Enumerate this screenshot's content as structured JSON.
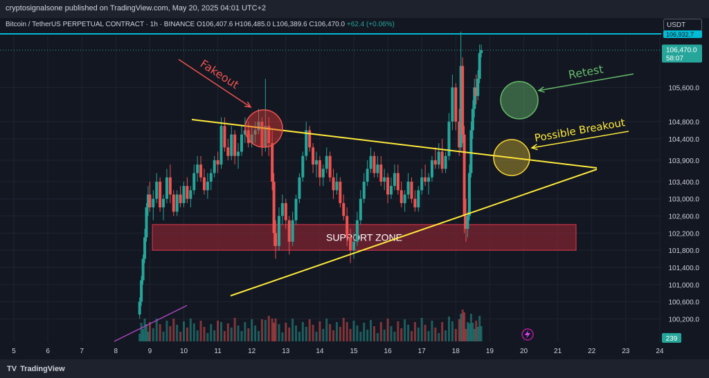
{
  "header": {
    "publish_info": "cryptosignalsone published on TradingView.com, May 20, 2025 04:01 UTC+2",
    "symbol": "Bitcoin / TetherUS PERPETUAL CONTRACT · 1h · BINANCE",
    "ohlc": "O106,407.6 H106,485.0 L106,389.6 C106,470.0",
    "change": "+62.4 (+0.06%)",
    "currency": "USDT"
  },
  "footer": {
    "brand": "TradingView",
    "logo_glyph": "TV"
  },
  "colors": {
    "background": "#131722",
    "up": "#26a69a",
    "down": "#ef5350",
    "trendline": "#ffeb3b",
    "support_zone": "#7d2431",
    "cyan_line": "#00bcd4"
  },
  "annotations": {
    "fakeout": "Fakeout",
    "retest": "Retest",
    "possible_breakout": "Possible Breakout",
    "support_zone": "SUPPORT ZONE"
  },
  "chart_data": {
    "type": "candlestick",
    "yticks": [
      "105,600.0",
      "104,800.0",
      "104,400.0",
      "103,900.0",
      "103,400.0",
      "103,000.0",
      "102,600.0",
      "102,200.0",
      "101,800.0",
      "101,400.0",
      "101,000.0",
      "100,600.0",
      "100,200.0"
    ],
    "xticks": [
      "5",
      "6",
      "7",
      "8",
      "9",
      "10",
      "11",
      "12",
      "13",
      "14",
      "15",
      "16",
      "17",
      "18",
      "19",
      "20",
      "21",
      "22",
      "23",
      "24"
    ],
    "ylim": [
      99900,
      106800
    ],
    "current_price": {
      "value": 106470.0,
      "label": "106,470.0",
      "countdown": "58:07"
    },
    "top_line_label": "106,932.7",
    "volume_label": "239",
    "support_zone": [
      101800,
      102400
    ],
    "series": [
      {
        "values": [
          [
            8.7,
            100300,
            100700,
            100200,
            100600
          ],
          [
            8.75,
            100600,
            101200,
            100500,
            101100
          ],
          [
            8.8,
            101100,
            101700,
            101000,
            101600
          ],
          [
            8.85,
            101600,
            102300,
            101500,
            102100
          ],
          [
            8.9,
            102100,
            102900,
            102000,
            102800
          ],
          [
            8.95,
            102800,
            103300,
            102600,
            103100
          ],
          [
            9.0,
            103100,
            103400,
            102700,
            102800
          ],
          [
            9.1,
            102800,
            103200,
            102500,
            103000
          ],
          [
            9.2,
            103000,
            103600,
            102900,
            103400
          ],
          [
            9.3,
            103400,
            103500,
            102700,
            102800
          ],
          [
            9.4,
            102800,
            103100,
            102500,
            103000
          ],
          [
            9.5,
            103000,
            103700,
            102900,
            103500
          ],
          [
            9.6,
            103500,
            103800,
            102900,
            103100
          ],
          [
            9.7,
            103100,
            103200,
            102600,
            102700
          ],
          [
            9.8,
            102700,
            103200,
            102600,
            103100
          ],
          [
            9.9,
            103100,
            103300,
            102800,
            102900
          ],
          [
            10.0,
            102900,
            103400,
            102800,
            103300
          ],
          [
            10.1,
            103300,
            103500,
            102900,
            103000
          ],
          [
            10.2,
            103000,
            103300,
            102800,
            103200
          ],
          [
            10.3,
            103200,
            103800,
            103100,
            103600
          ],
          [
            10.4,
            103600,
            104000,
            103400,
            103800
          ],
          [
            10.5,
            103800,
            104000,
            103400,
            103500
          ],
          [
            10.6,
            103500,
            103700,
            103100,
            103200
          ],
          [
            10.7,
            103200,
            103600,
            103000,
            103400
          ],
          [
            10.8,
            103400,
            103700,
            103200,
            103600
          ],
          [
            10.9,
            103600,
            104000,
            103500,
            103900
          ],
          [
            11.0,
            103900,
            104100,
            103600,
            103800
          ],
          [
            11.1,
            103800,
            104900,
            103700,
            104700
          ],
          [
            11.2,
            104700,
            104900,
            104100,
            104200
          ],
          [
            11.3,
            104200,
            104400,
            103900,
            104000
          ],
          [
            11.4,
            104000,
            104700,
            103900,
            104500
          ],
          [
            11.5,
            104500,
            104600,
            103800,
            104000
          ],
          [
            11.6,
            104000,
            104300,
            103700,
            104100
          ],
          [
            11.7,
            104100,
            104700,
            104000,
            104500
          ],
          [
            11.8,
            104500,
            104900,
            104300,
            104600
          ],
          [
            11.9,
            104600,
            104800,
            104200,
            104300
          ],
          [
            12.0,
            104300,
            104700,
            104200,
            104500
          ],
          [
            12.1,
            104500,
            104800,
            104300,
            104600
          ],
          [
            12.2,
            104600,
            105100,
            104500,
            104800
          ],
          [
            12.3,
            104800,
            104900,
            104000,
            104200
          ],
          [
            12.4,
            104200,
            105800,
            104100,
            104700
          ],
          [
            12.5,
            104700,
            104900,
            104000,
            104300
          ],
          [
            12.6,
            104300,
            104600,
            103200,
            103400
          ],
          [
            12.65,
            103400,
            103600,
            101900,
            102200
          ],
          [
            12.7,
            102200,
            102500,
            101600,
            101900
          ],
          [
            12.8,
            101900,
            102800,
            101800,
            102600
          ],
          [
            12.9,
            102600,
            103100,
            102400,
            102900
          ],
          [
            13.0,
            102900,
            103000,
            102300,
            102500
          ],
          [
            13.1,
            102500,
            102600,
            101700,
            102000
          ],
          [
            13.2,
            102000,
            102700,
            101900,
            102500
          ],
          [
            13.3,
            102500,
            103100,
            102400,
            103000
          ],
          [
            13.4,
            103000,
            103600,
            102900,
            103500
          ],
          [
            13.5,
            103500,
            104100,
            103400,
            104000
          ],
          [
            13.6,
            104000,
            104800,
            103900,
            104600
          ],
          [
            13.7,
            104600,
            104700,
            104100,
            104200
          ],
          [
            13.8,
            104200,
            104300,
            103600,
            103800
          ],
          [
            13.9,
            103800,
            104100,
            103500,
            103900
          ],
          [
            14.0,
            103900,
            104000,
            103300,
            103500
          ],
          [
            14.1,
            103500,
            103800,
            103300,
            103700
          ],
          [
            14.2,
            103700,
            104200,
            103600,
            104000
          ],
          [
            14.3,
            104000,
            104100,
            103400,
            103500
          ],
          [
            14.4,
            103500,
            103700,
            103000,
            103200
          ],
          [
            14.5,
            103200,
            103600,
            103100,
            103400
          ],
          [
            14.6,
            103400,
            103500,
            102800,
            102900
          ],
          [
            14.7,
            102900,
            103100,
            102500,
            102600
          ],
          [
            14.8,
            102600,
            102800,
            101900,
            102100
          ],
          [
            14.9,
            102100,
            102300,
            101500,
            101800
          ],
          [
            15.0,
            101800,
            102200,
            101600,
            102000
          ],
          [
            15.1,
            102000,
            102700,
            101900,
            102500
          ],
          [
            15.2,
            102500,
            103200,
            102400,
            103000
          ],
          [
            15.3,
            103000,
            103600,
            102900,
            103400
          ],
          [
            15.4,
            103400,
            103900,
            103300,
            103700
          ],
          [
            15.5,
            103700,
            104200,
            103600,
            104000
          ],
          [
            15.6,
            104000,
            104100,
            103500,
            103600
          ],
          [
            15.7,
            103600,
            104000,
            103500,
            103800
          ],
          [
            15.8,
            103800,
            104000,
            103300,
            103400
          ],
          [
            15.9,
            103400,
            103700,
            103200,
            103500
          ],
          [
            16.0,
            103500,
            103600,
            102900,
            103100
          ],
          [
            16.1,
            103100,
            103500,
            103000,
            103300
          ],
          [
            16.2,
            103300,
            103800,
            103200,
            103600
          ],
          [
            16.3,
            103600,
            103800,
            103100,
            103200
          ],
          [
            16.4,
            103200,
            103400,
            102800,
            102900
          ],
          [
            16.5,
            102900,
            103200,
            102700,
            103100
          ],
          [
            16.6,
            103100,
            103600,
            103000,
            103400
          ],
          [
            16.7,
            103400,
            103500,
            102900,
            103000
          ],
          [
            16.8,
            103000,
            103200,
            102700,
            102800
          ],
          [
            16.9,
            102800,
            103300,
            102700,
            103200
          ],
          [
            17.0,
            103200,
            103700,
            103100,
            103500
          ],
          [
            17.1,
            103500,
            103800,
            103300,
            103400
          ],
          [
            17.2,
            103400,
            103600,
            103100,
            103500
          ],
          [
            17.3,
            103500,
            104000,
            103400,
            103900
          ],
          [
            17.4,
            103900,
            104200,
            103700,
            103800
          ],
          [
            17.5,
            103800,
            104300,
            103700,
            104100
          ],
          [
            17.6,
            104100,
            104400,
            103600,
            103700
          ],
          [
            17.7,
            103700,
            104100,
            103600,
            104000
          ],
          [
            17.8,
            104000,
            105000,
            103900,
            104800
          ],
          [
            17.9,
            104800,
            105900,
            104600,
            105600
          ],
          [
            18.0,
            105600,
            105700,
            104600,
            104800
          ],
          [
            18.1,
            104800,
            105100,
            104000,
            104200
          ],
          [
            18.15,
            104200,
            106900,
            104100,
            106100
          ],
          [
            18.2,
            106100,
            106300,
            104300,
            104500
          ],
          [
            18.25,
            104500,
            104700,
            102200,
            102600
          ],
          [
            18.3,
            102600,
            103000,
            102000,
            102300
          ],
          [
            18.35,
            102300,
            102700,
            102100,
            102600
          ],
          [
            18.4,
            102600,
            103800,
            102500,
            103600
          ],
          [
            18.45,
            103600,
            104800,
            103500,
            104600
          ],
          [
            18.5,
            104600,
            105300,
            104400,
            105100
          ],
          [
            18.55,
            105100,
            105800,
            104900,
            105600
          ],
          [
            18.6,
            105600,
            105900,
            105200,
            105400
          ],
          [
            18.65,
            105400,
            106000,
            105300,
            105800
          ],
          [
            18.7,
            105800,
            106600,
            105700,
            106400
          ],
          [
            18.75,
            106400,
            106600,
            106300,
            106470
          ]
        ]
      }
    ]
  }
}
